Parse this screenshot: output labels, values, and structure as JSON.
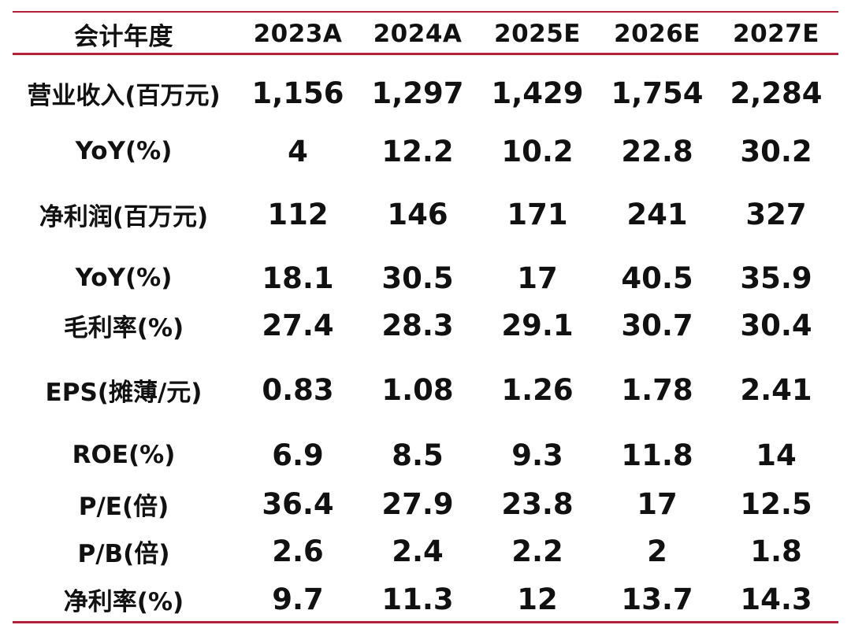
{
  "table": {
    "header": [
      "会计年度",
      "2023A",
      "2024A",
      "2025E",
      "2026E",
      "2027E"
    ],
    "rows": [
      {
        "label": "营业收入(百万元)",
        "values": [
          "1,156",
          "1,297",
          "1,429",
          "1,754",
          "2,284"
        ]
      },
      {
        "label": "YoY(%)",
        "values": [
          "4",
          "12.2",
          "10.2",
          "22.8",
          "30.2"
        ]
      },
      {
        "label": "净利润(百万元)",
        "values": [
          "112",
          "146",
          "171",
          "241",
          "327"
        ]
      },
      {
        "label": "YoY(%)",
        "values": [
          "18.1",
          "30.5",
          "17",
          "40.5",
          "35.9"
        ]
      },
      {
        "label": "毛利率(%)",
        "values": [
          "27.4",
          "28.3",
          "29.1",
          "30.7",
          "30.4"
        ]
      },
      {
        "label": "EPS(摊薄/元)",
        "values": [
          "0.83",
          "1.08",
          "1.26",
          "1.78",
          "2.41"
        ]
      },
      {
        "label": "ROE(%)",
        "values": [
          "6.9",
          "8.5",
          "9.3",
          "11.8",
          "14"
        ]
      },
      {
        "label": "P/E(倍)",
        "values": [
          "36.4",
          "27.9",
          "23.8",
          "17",
          "12.5"
        ]
      },
      {
        "label": "P/B(倍)",
        "values": [
          "2.6",
          "2.4",
          "2.2",
          "2",
          "1.8"
        ]
      },
      {
        "label": "净利率(%)",
        "values": [
          "9.7",
          "11.3",
          "12",
          "13.7",
          "14.3"
        ]
      }
    ],
    "rule_color": "#b3213b"
  }
}
